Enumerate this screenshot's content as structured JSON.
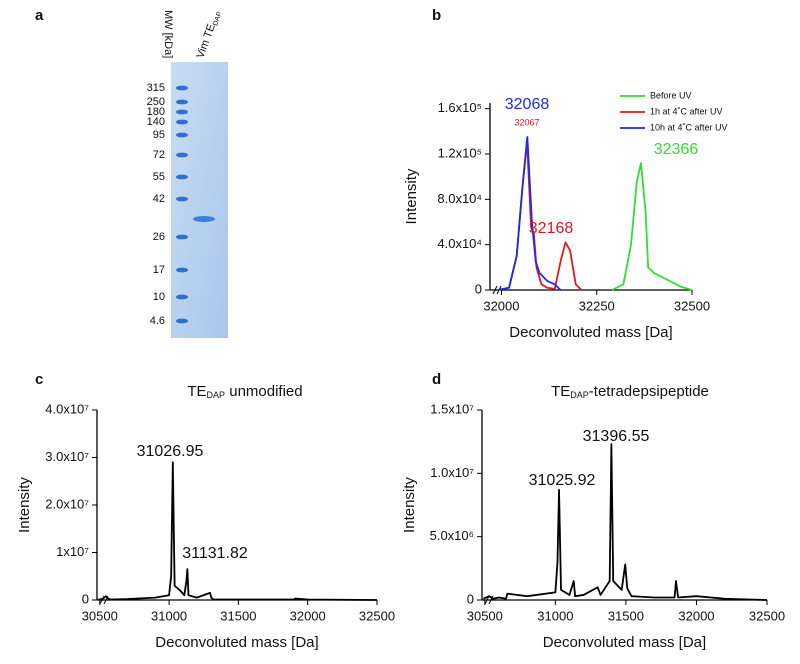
{
  "gel": {
    "panel_label": "a",
    "column_labels": {
      "mw": "MW [kDa]",
      "sample": {
        "main": "Vim TE",
        "sub": "DAP"
      }
    },
    "mw_markers": [
      315,
      250,
      180,
      140,
      95,
      72,
      55,
      42,
      26,
      17,
      10,
      4.6
    ]
  },
  "chart_data": [
    {
      "type": "line",
      "panel_label": "b",
      "x_label": "Deconvoluted mass [Da]",
      "y_label": "Intensity",
      "xlim": [
        31970,
        32500
      ],
      "ylim": [
        0,
        165000
      ],
      "xticks": [
        32000,
        32250,
        32500
      ],
      "yticks": [
        0,
        {
          "value": 40000,
          "label": "4.0x10⁴"
        },
        {
          "value": 80000,
          "label": "8.0x10⁴"
        },
        {
          "value": 120000,
          "label": "1.2x10⁵"
        },
        {
          "value": 160000,
          "label": "1.6x10⁵"
        }
      ],
      "legend": "top-right",
      "series": [
        {
          "name": "Before UV",
          "color": "#33dd33",
          "x": [
            32290,
            32320,
            32340,
            32355,
            32366,
            32378,
            32385,
            32400,
            32430,
            32470,
            32500
          ],
          "values": [
            0,
            5000,
            40000,
            95000,
            112000,
            70000,
            20000,
            15000,
            10000,
            3000,
            0
          ]
        },
        {
          "name": "1h at 4˚C after UV",
          "color": "#e8141e",
          "x": [
            31990,
            32020,
            32040,
            32055,
            32067,
            32078,
            32085,
            32092,
            32105,
            32120,
            32140,
            32155,
            32168,
            32180,
            32195,
            32210
          ],
          "values": [
            0,
            2000,
            30000,
            90000,
            132000,
            55000,
            50000,
            20000,
            5000,
            2000,
            1000,
            25000,
            42000,
            35000,
            5000,
            0
          ]
        },
        {
          "name": "10h at 4˚C after UV",
          "color": "#1a2ee0",
          "x": [
            31990,
            32020,
            32040,
            32055,
            32068,
            32080,
            32090,
            32100,
            32120,
            32140,
            32155
          ],
          "values": [
            0,
            2000,
            30000,
            90000,
            135000,
            60000,
            25000,
            15000,
            8000,
            5000,
            0
          ]
        }
      ],
      "annotations": [
        {
          "text": "32068",
          "color": "#1a2ee0"
        },
        {
          "text": "32067",
          "color": "#e8141e"
        },
        {
          "text": "32168",
          "color": "#e8141e"
        },
        {
          "text": "32366",
          "color": "#33dd33"
        }
      ]
    },
    {
      "type": "line",
      "panel_label": "c",
      "title": {
        "main": "TE",
        "sub": "DAP",
        "rest": " unmodified"
      },
      "x_label": "Deconvoluted mass [Da]",
      "y_label": "Intensity",
      "xlim": [
        30480,
        32500
      ],
      "ylim": [
        0,
        40000000
      ],
      "xticks": [
        30500,
        31000,
        31500,
        32000,
        32500
      ],
      "yticks": [
        0,
        {
          "value": 10000000,
          "label": "1x10⁷"
        },
        {
          "value": 20000000,
          "label": "2.0x10⁷"
        },
        {
          "value": 30000000,
          "label": "3.0x10⁷"
        },
        {
          "value": 40000000,
          "label": "4.0x10⁷"
        }
      ],
      "series": [
        {
          "name": null,
          "color": "#000000",
          "x": [
            30490,
            30520,
            30545,
            30560,
            30580,
            30700,
            30900,
            31000,
            31015,
            31027,
            31040,
            31080,
            31110,
            31125,
            31132,
            31140,
            31200,
            31295,
            31305,
            31320,
            31500,
            31900,
            31910,
            32000,
            32500
          ],
          "values": [
            100000,
            200000,
            800000,
            300000,
            100000,
            200000,
            500000,
            1000000,
            5000000,
            29000000,
            3000000,
            2000000,
            1000000,
            4000000,
            6500000,
            1000000,
            500000,
            1500000,
            500000,
            100000,
            100000,
            100000,
            300000,
            100000,
            0
          ]
        }
      ],
      "annotations": [
        {
          "text": "31026.95",
          "color": "#111111"
        },
        {
          "text": "31131.82",
          "color": "#111111"
        }
      ]
    },
    {
      "type": "line",
      "panel_label": "d",
      "title": {
        "main": "TE",
        "sub": "DAP",
        "rest": "-tetradepsipeptide"
      },
      "x_label": "Deconvoluted mass [Da]",
      "y_label": "Intensity",
      "xlim": [
        30480,
        32500
      ],
      "ylim": [
        0,
        15000000
      ],
      "xticks": [
        30500,
        31000,
        31500,
        32000,
        32500
      ],
      "yticks": [
        0,
        {
          "value": 5000000,
          "label": "5.0x10⁶"
        },
        {
          "value": 10000000,
          "label": "1.0x10⁷"
        },
        {
          "value": 15000000,
          "label": "1.5x10⁷"
        }
      ],
      "series": [
        {
          "name": null,
          "color": "#000000",
          "x": [
            30490,
            30530,
            30560,
            30600,
            30650,
            30660,
            30800,
            31000,
            31015,
            31026,
            31040,
            31100,
            31130,
            31140,
            31200,
            31300,
            31320,
            31385,
            31397,
            31410,
            31470,
            31495,
            31510,
            31540,
            31700,
            31845,
            31855,
            31870,
            32000,
            32200,
            32500
          ],
          "values": [
            100000,
            300000,
            100000,
            200000,
            100000,
            500000,
            300000,
            600000,
            3000000,
            8700000,
            800000,
            400000,
            1500000,
            300000,
            400000,
            1000000,
            400000,
            1500000,
            12300000,
            1500000,
            800000,
            2800000,
            900000,
            300000,
            200000,
            200000,
            1500000,
            200000,
            300000,
            100000,
            0
          ]
        }
      ],
      "annotations": [
        {
          "text": "31025.92",
          "color": "#111111"
        },
        {
          "text": "31396.55",
          "color": "#111111"
        }
      ]
    }
  ]
}
